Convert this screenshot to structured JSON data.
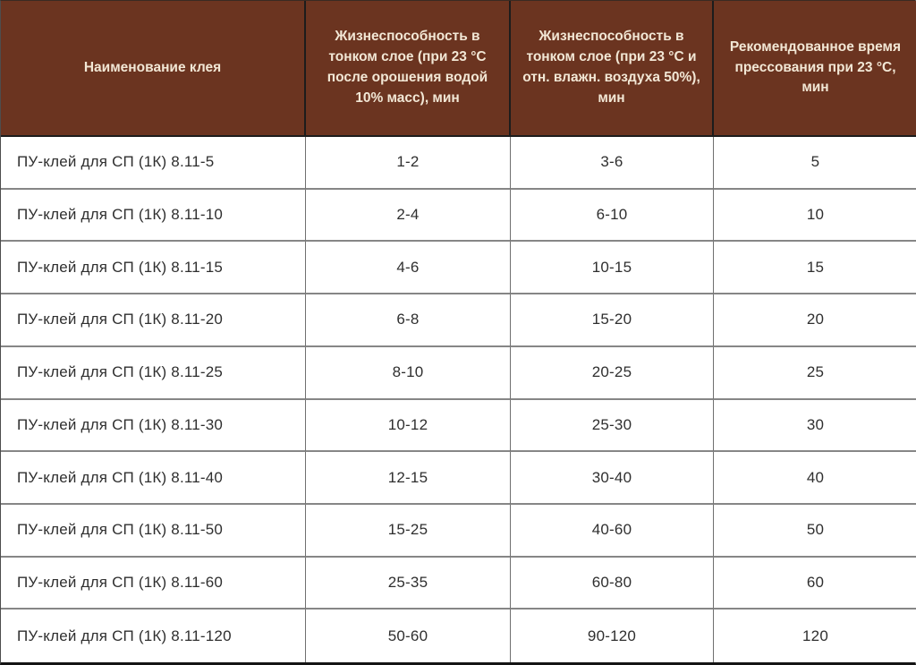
{
  "chart_data": {
    "type": "table",
    "columns": [
      "Наименование клея",
      "Жизнеспособность в тонком слое (при 23 °С после орошения водой 10% масс), мин",
      "Жизнеспособность в тонком слое (при 23 °С и отн. влажн. воздуха 50%), мин",
      "Рекомендованное время прессования при 23 °С, мин"
    ],
    "rows": [
      [
        "ПУ-клей для СП (1К) 8.11-5",
        "1-2",
        "3-6",
        "5"
      ],
      [
        "ПУ-клей для СП (1К) 8.11-10",
        "2-4",
        "6-10",
        "10"
      ],
      [
        "ПУ-клей для СП (1К) 8.11-15",
        "4-6",
        "10-15",
        "15"
      ],
      [
        "ПУ-клей для СП (1К) 8.11-20",
        "6-8",
        "15-20",
        "20"
      ],
      [
        "ПУ-клей для СП (1К) 8.11-25",
        "8-10",
        "20-25",
        "25"
      ],
      [
        "ПУ-клей для СП (1К) 8.11-30",
        "10-12",
        "25-30",
        "30"
      ],
      [
        "ПУ-клей для СП (1К) 8.11-40",
        "12-15",
        "30-40",
        "40"
      ],
      [
        "ПУ-клей для СП (1К) 8.11-50",
        "15-25",
        "40-60",
        "50"
      ],
      [
        "ПУ-клей для СП (1К) 8.11-60",
        "25-35",
        "60-80",
        "60"
      ],
      [
        "ПУ-клей для СП (1К) 8.11-120",
        "50-60",
        "90-120",
        "120"
      ]
    ],
    "layout": {
      "grid": true,
      "header_position": "top",
      "first_column_align": "left",
      "value_columns_align": "center"
    }
  },
  "colors": {
    "header_bg": "#6b3420",
    "header_text": "#f2e7d5",
    "body_text": "#2f2f2f",
    "grid": "#7a7a7a",
    "header_grid": "#1c1c1c",
    "row_bg": "#ffffff"
  }
}
